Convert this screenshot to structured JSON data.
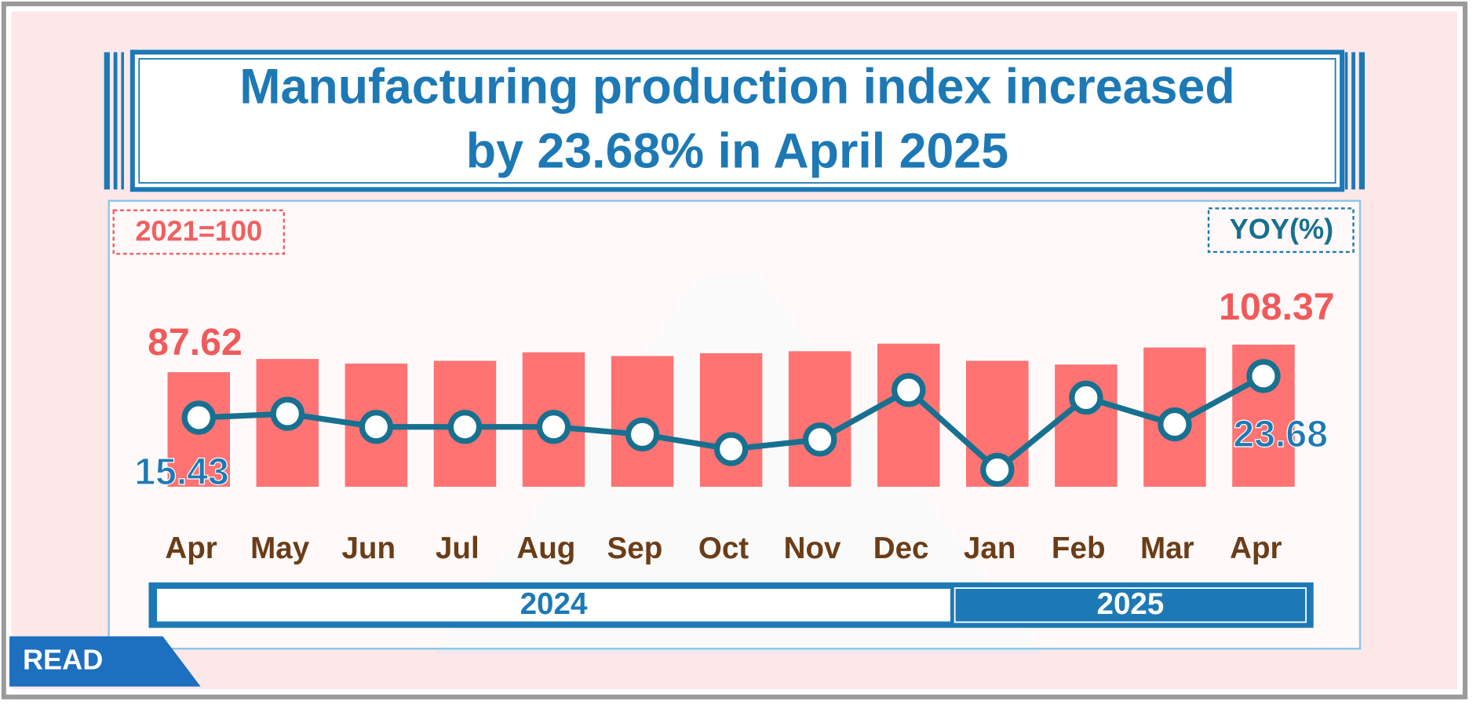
{
  "badge": "READ",
  "chart_data": {
    "type": "bar",
    "title": "Manufacturing production index increased by 23.68% in April 2025",
    "categories": [
      "Apr",
      "May",
      "Jun",
      "Jul",
      "Aug",
      "Sep",
      "Oct",
      "Nov",
      "Dec",
      "Jan",
      "Feb",
      "Mar",
      "Apr"
    ],
    "years": [
      {
        "label": "2024",
        "count": 9
      },
      {
        "label": "2025",
        "count": 4
      }
    ],
    "series": [
      {
        "name": "2021=100",
        "type": "bar",
        "color": "#ff7373",
        "values": [
          87.62,
          97.6,
          94.1,
          96.2,
          102.6,
          99.8,
          101.9,
          103.4,
          109.1,
          96.2,
          93.4,
          106.2,
          108.37
        ]
      },
      {
        "name": "YOY(%)",
        "type": "line",
        "color": "#17708f",
        "values": [
          15.43,
          16.2,
          13.6,
          13.6,
          13.6,
          12.1,
          9.2,
          11.1,
          20.9,
          5.1,
          19.4,
          14.1,
          23.68
        ]
      }
    ]
  }
}
